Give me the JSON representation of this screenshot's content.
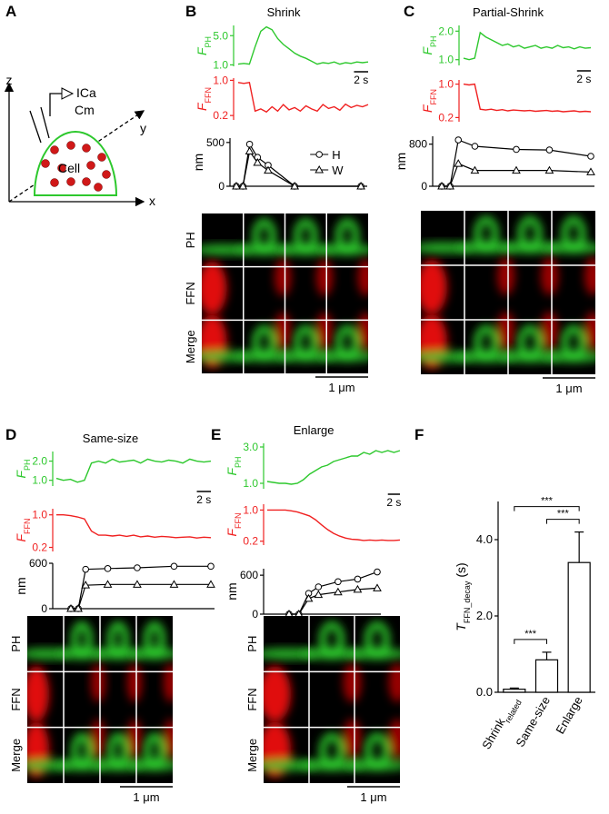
{
  "panel_labels": [
    "A",
    "B",
    "C",
    "D",
    "E",
    "F"
  ],
  "diagram": {
    "axes": [
      "z",
      "y",
      "x"
    ],
    "labels": [
      "ICa",
      "Cm",
      "Cell"
    ]
  },
  "image_groups": [
    {
      "rows": [
        "PH",
        "FFN",
        "Merge"
      ],
      "scalebar": "1 μm"
    },
    {
      "scalebar": "1 μm"
    },
    {
      "rows": [
        "PH",
        "FFN",
        "Merge"
      ],
      "scalebar": "1 μm"
    },
    {
      "rows": [
        "PH",
        "FFN",
        "Merge"
      ],
      "scalebar": "1 μm"
    }
  ],
  "chart_data": [
    {
      "type": "line",
      "title": "Shrink",
      "ylabel": "F",
      "ylabel_sub": "PH",
      "color": "#2dc82d",
      "x": [
        0,
        0.8,
        1.6,
        2.4,
        3.2,
        4,
        4.8,
        5.6,
        6.4,
        7.2,
        8,
        8.8,
        9.6,
        10.4,
        11.2,
        12,
        12.8,
        13.6,
        14.4,
        15.2,
        16,
        16.8,
        17.6,
        18.4
      ],
      "values": [
        1.1,
        1.2,
        1.1,
        3.5,
        5.6,
        6.2,
        5.8,
        4.6,
        3.8,
        3.2,
        2.6,
        2.2,
        1.9,
        1.5,
        1.1,
        1.3,
        1.2,
        1.4,
        1.1,
        1.3,
        1.2,
        1.4,
        1.3,
        1.4
      ],
      "xlim": [
        0,
        18.4
      ],
      "ylim": [
        0.8,
        6.4
      ],
      "yticks": [
        {
          "value": 1,
          "label": "1.0"
        },
        {
          "value": 5,
          "label": "5.0"
        }
      ],
      "scalebar": {
        "value": 2,
        "label": "2 s"
      }
    },
    {
      "type": "line",
      "ylabel": "F",
      "ylabel_sub": "FFN",
      "color": "#f02020",
      "x": [
        0,
        0.8,
        1.6,
        2.4,
        3.2,
        4,
        4.8,
        5.6,
        6.4,
        7.2,
        8,
        8.8,
        9.6,
        10.4,
        11.2,
        12,
        12.8,
        13.6,
        14.4,
        15.2,
        16,
        16.8,
        17.6,
        18.4
      ],
      "values": [
        0.95,
        0.93,
        0.95,
        0.3,
        0.35,
        0.28,
        0.4,
        0.3,
        0.45,
        0.33,
        0.38,
        0.3,
        0.42,
        0.35,
        0.3,
        0.45,
        0.36,
        0.4,
        0.32,
        0.46,
        0.38,
        0.43,
        0.4,
        0.45
      ],
      "xlim": [
        0,
        18.4
      ],
      "ylim": [
        0.1,
        1.05
      ],
      "yticks": [
        0.2,
        {
          "value": 1,
          "label": "1.0"
        }
      ]
    },
    {
      "type": "line",
      "ylabel": "nm",
      "legend": true,
      "x": [
        0,
        0.5,
        1,
        1.6,
        2.4,
        4.4,
        9.4
      ],
      "xlim": [
        0,
        9.6
      ],
      "ylim": [
        0,
        550
      ],
      "yticks": [
        0,
        500
      ],
      "series": [
        {
          "name": "H",
          "color": "#000000",
          "marker": "circle",
          "values": [
            0,
            0,
            480,
            330,
            240,
            0,
            0
          ]
        },
        {
          "name": "W",
          "color": "#000000",
          "marker": "triangle",
          "values": [
            0,
            0,
            400,
            270,
            180,
            0,
            0
          ]
        }
      ]
    },
    {
      "type": "line",
      "title": "Partial-Shrink",
      "ylabel": "F",
      "ylabel_sub": "PH",
      "color": "#2dc82d",
      "x": [
        0,
        0.8,
        1.6,
        2.4,
        3.2,
        4,
        4.8,
        5.6,
        6.4,
        7.2,
        8,
        8.8,
        9.6,
        10.4,
        11.2,
        12,
        12.8,
        13.6,
        14.4,
        15.2,
        16,
        16.8,
        17.6,
        18.4
      ],
      "values": [
        1.05,
        1.0,
        1.05,
        1.95,
        1.8,
        1.7,
        1.6,
        1.5,
        1.55,
        1.45,
        1.5,
        1.4,
        1.45,
        1.5,
        1.4,
        1.45,
        1.4,
        1.5,
        1.42,
        1.45,
        1.38,
        1.45,
        1.4,
        1.42
      ],
      "xlim": [
        0,
        18.4
      ],
      "ylim": [
        0.8,
        2.2
      ],
      "yticks": [
        {
          "value": 1,
          "label": "1.0"
        },
        {
          "value": 2,
          "label": "2.0"
        }
      ],
      "scalebar": {
        "value": 2,
        "label": "2 s"
      }
    },
    {
      "type": "line",
      "ylabel": "F",
      "ylabel_sub": "FFN",
      "color": "#f02020",
      "x": [
        0,
        0.8,
        1.6,
        2.4,
        3.2,
        4,
        4.8,
        5.6,
        6.4,
        7.2,
        8,
        8.8,
        9.6,
        10.4,
        11.2,
        12,
        12.8,
        13.6,
        14.4,
        15.2,
        16,
        16.8,
        17.6,
        18.4
      ],
      "values": [
        1.0,
        0.98,
        1.0,
        0.4,
        0.38,
        0.4,
        0.37,
        0.39,
        0.36,
        0.38,
        0.37,
        0.36,
        0.37,
        0.35,
        0.36,
        0.37,
        0.35,
        0.36,
        0.34,
        0.35,
        0.36,
        0.34,
        0.35,
        0.34
      ],
      "xlim": [
        0,
        18.4
      ],
      "ylim": [
        0.1,
        1.1
      ],
      "yticks": [
        0.2,
        {
          "value": 1,
          "label": "1.0"
        }
      ]
    },
    {
      "type": "line",
      "ylabel": "nm",
      "x": [
        0,
        0.5,
        1,
        2,
        4.5,
        6.5,
        9
      ],
      "xlim": [
        0,
        9
      ],
      "ylim": [
        0,
        950
      ],
      "yticks": [
        0,
        800
      ],
      "series": [
        {
          "color": "#000000",
          "marker": "circle",
          "values": [
            0,
            0,
            880,
            760,
            700,
            690,
            570
          ]
        },
        {
          "color": "#000000",
          "marker": "triangle",
          "values": [
            0,
            0,
            430,
            300,
            300,
            300,
            270
          ]
        }
      ]
    },
    {
      "type": "line",
      "title": "Same-size",
      "ylabel": "F",
      "ylabel_sub": "PH",
      "color": "#2dc82d",
      "x": [
        0,
        1,
        2,
        3,
        4,
        5,
        6,
        7,
        8,
        9,
        10,
        11,
        12,
        13,
        14,
        15,
        16,
        17,
        18,
        19,
        20,
        21,
        22
      ],
      "values": [
        1.1,
        1.0,
        1.05,
        0.9,
        1.0,
        1.9,
        2.0,
        1.9,
        2.1,
        1.95,
        2.0,
        2.05,
        1.9,
        2.1,
        2.0,
        1.95,
        2.05,
        2.0,
        1.9,
        2.1,
        2.0,
        1.95,
        2.0
      ],
      "xlim": [
        0,
        22
      ],
      "ylim": [
        0.7,
        2.5
      ],
      "yticks": [
        {
          "value": 1,
          "label": "1.0"
        },
        {
          "value": 2,
          "label": "2.0"
        }
      ],
      "scalebar": {
        "value": 2,
        "label": "2 s"
      }
    },
    {
      "type": "line",
      "ylabel": "F",
      "ylabel_sub": "FFN",
      "color": "#f02020",
      "x": [
        0,
        1,
        2,
        3,
        4,
        5,
        6,
        7,
        8,
        9,
        10,
        11,
        12,
        13,
        14,
        15,
        16,
        17,
        18,
        19,
        20,
        21,
        22
      ],
      "values": [
        1.0,
        1.0,
        0.98,
        0.95,
        0.9,
        0.6,
        0.5,
        0.5,
        0.48,
        0.5,
        0.47,
        0.5,
        0.46,
        0.48,
        0.45,
        0.47,
        0.46,
        0.44,
        0.45,
        0.46,
        0.43,
        0.45,
        0.44
      ],
      "xlim": [
        0,
        22
      ],
      "ylim": [
        0.1,
        1.15
      ],
      "yticks": [
        0.2,
        {
          "value": 1,
          "label": "1.0"
        }
      ]
    },
    {
      "type": "line",
      "ylabel": "nm",
      "x": [
        0,
        1,
        2,
        5,
        9,
        14,
        19
      ],
      "xlim": [
        0,
        19
      ],
      "ylim": [
        0,
        600
      ],
      "yticks": [
        0,
        600
      ],
      "series": [
        {
          "color": "#000000",
          "marker": "circle",
          "values": [
            0,
            0,
            520,
            530,
            540,
            560,
            560
          ]
        },
        {
          "color": "#000000",
          "marker": "triangle",
          "values": [
            0,
            0,
            310,
            320,
            320,
            320,
            320
          ]
        }
      ]
    },
    {
      "type": "line",
      "title": "Enlarge",
      "ylabel": "F",
      "ylabel_sub": "PH",
      "color": "#2dc82d",
      "x": [
        0,
        1,
        2,
        3,
        4,
        5,
        6,
        7,
        8,
        9,
        10,
        11,
        12,
        13,
        14,
        15,
        16,
        17,
        18,
        19,
        20,
        21,
        22
      ],
      "values": [
        1.1,
        1.05,
        1.0,
        1.0,
        0.95,
        1.0,
        1.2,
        1.5,
        1.7,
        1.9,
        2.0,
        2.2,
        2.3,
        2.4,
        2.5,
        2.5,
        2.7,
        2.6,
        2.8,
        2.7,
        2.8,
        2.7,
        2.8
      ],
      "xlim": [
        0,
        22
      ],
      "ylim": [
        0.7,
        3.2
      ],
      "yticks": [
        {
          "value": 1,
          "label": "1.0"
        },
        {
          "value": 3,
          "label": "3.0"
        }
      ],
      "scalebar": {
        "value": 2,
        "label": "2 s"
      }
    },
    {
      "type": "line",
      "ylabel": "F",
      "ylabel_sub": "FFN",
      "color": "#f02020",
      "x": [
        0,
        1,
        2,
        3,
        4,
        5,
        6,
        7,
        8,
        9,
        10,
        11,
        12,
        13,
        14,
        15,
        16,
        17,
        18,
        19,
        20,
        21,
        22
      ],
      "values": [
        1.0,
        1.0,
        1.0,
        1.0,
        0.98,
        0.95,
        0.9,
        0.85,
        0.75,
        0.62,
        0.5,
        0.4,
        0.33,
        0.28,
        0.25,
        0.24,
        0.22,
        0.23,
        0.22,
        0.23,
        0.22,
        0.22,
        0.23
      ],
      "xlim": [
        0,
        22
      ],
      "ylim": [
        0.1,
        1.15
      ],
      "yticks": [
        0.2,
        {
          "value": 1,
          "label": "1.0"
        }
      ]
    },
    {
      "type": "line",
      "ylabel": "nm",
      "x": [
        0,
        1,
        2,
        3,
        5,
        7,
        9
      ],
      "xlim": [
        0,
        9
      ],
      "ylim": [
        0,
        700
      ],
      "yticks": [
        0,
        600
      ],
      "series": [
        {
          "color": "#000000",
          "marker": "circle",
          "values": [
            0,
            0,
            320,
            420,
            500,
            540,
            650
          ]
        },
        {
          "color": "#000000",
          "marker": "triangle",
          "values": [
            0,
            0,
            240,
            300,
            340,
            380,
            400
          ]
        }
      ]
    },
    {
      "type": "bar",
      "ylabel": "T",
      "ylabel_sub": "FFN_decay",
      "ylabel_unit": "(s)",
      "categories": [
        "Shrink",
        "Same-size",
        "Enlarge"
      ],
      "category_subscripts": [
        "related",
        null,
        null
      ],
      "values": [
        0.08,
        0.85,
        3.4
      ],
      "errors": [
        0.03,
        0.2,
        0.8
      ],
      "color": "#ffffff",
      "ylim": [
        0,
        5
      ],
      "yticks": [
        {
          "value": 0,
          "label": "0.0"
        },
        {
          "value": 2,
          "label": "2.0"
        },
        {
          "value": 4,
          "label": "4.0"
        }
      ],
      "significance": [
        {
          "from": 0,
          "to": 1,
          "label": "***"
        },
        {
          "from": 1,
          "to": 2,
          "label": "***"
        },
        {
          "from": 0,
          "to": 2,
          "label": "***"
        }
      ]
    }
  ]
}
